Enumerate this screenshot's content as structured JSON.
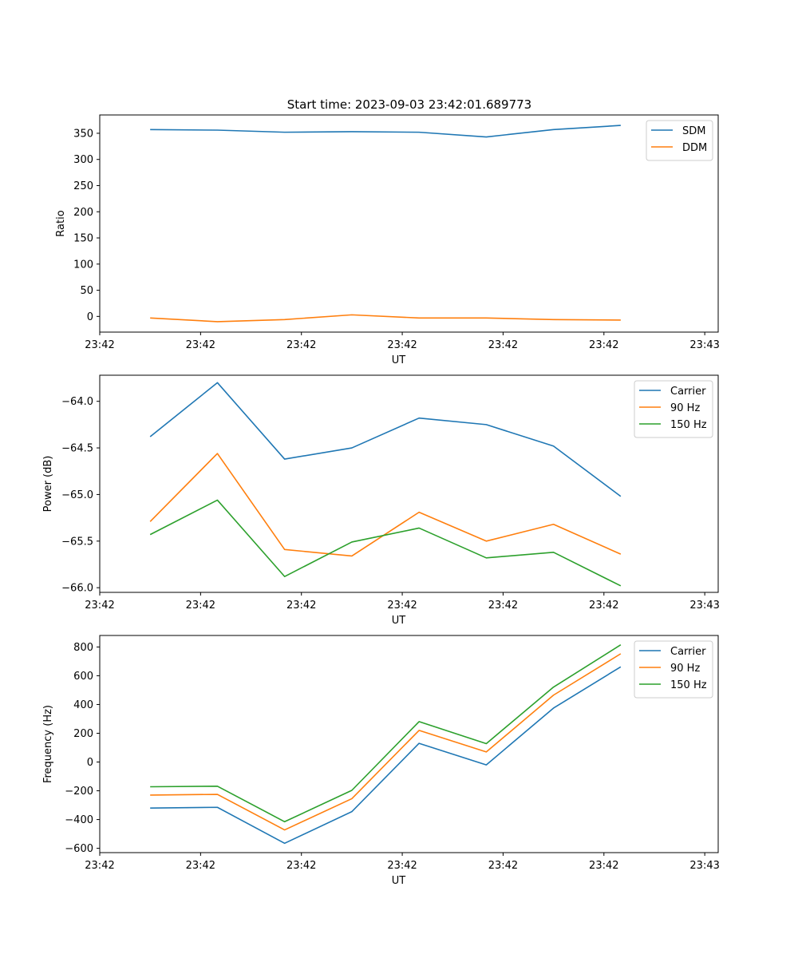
{
  "title": "Start time: 2023-09-03 23:42:01.689773",
  "colors": {
    "blue": "#1f77b4",
    "orange": "#ff7f0e",
    "green": "#2ca02c"
  },
  "chart_data": [
    {
      "type": "line",
      "xlabel": "UT",
      "ylabel": "Ratio",
      "x": [
        1,
        2,
        3,
        4,
        5,
        6,
        7,
        8
      ],
      "xlim": [
        0.25,
        9.45
      ],
      "xticks": [
        0.25,
        1.75,
        3.25,
        4.75,
        6.25,
        7.75,
        9.25
      ],
      "xtick_labels": [
        "23:42",
        "23:42",
        "23:42",
        "23:42",
        "23:42",
        "23:42",
        "23:43"
      ],
      "ylim": [
        -30,
        385
      ],
      "yticks": [
        0,
        50,
        100,
        150,
        200,
        250,
        300,
        350
      ],
      "ytick_labels": [
        "0",
        "50",
        "100",
        "150",
        "200",
        "250",
        "300",
        "350"
      ],
      "legend": "top-right",
      "series": [
        {
          "name": "SDM",
          "color": "blue",
          "values": [
            357,
            356,
            352,
            353,
            352,
            343,
            357,
            365
          ]
        },
        {
          "name": "DDM",
          "color": "orange",
          "values": [
            -3,
            -10,
            -6,
            3,
            -3,
            -3,
            -6,
            -7
          ]
        }
      ]
    },
    {
      "type": "line",
      "xlabel": "UT",
      "ylabel": "Power (dB)",
      "x": [
        1,
        2,
        3,
        4,
        5,
        6,
        7,
        8
      ],
      "xlim": [
        0.25,
        9.45
      ],
      "xticks": [
        0.25,
        1.75,
        3.25,
        4.75,
        6.25,
        7.75,
        9.25
      ],
      "xtick_labels": [
        "23:42",
        "23:42",
        "23:42",
        "23:42",
        "23:42",
        "23:42",
        "23:43"
      ],
      "ylim": [
        -66.05,
        -63.72
      ],
      "yticks": [
        -66.0,
        -65.5,
        -65.0,
        -64.5,
        -64.0
      ],
      "ytick_labels": [
        "−66.0",
        "−65.5",
        "−65.0",
        "−64.5",
        "−64.0"
      ],
      "legend": "top-right",
      "series": [
        {
          "name": "Carrier",
          "color": "blue",
          "values": [
            -64.38,
            -63.8,
            -64.62,
            -64.5,
            -64.18,
            -64.25,
            -64.48,
            -65.02
          ]
        },
        {
          "name": "90 Hz",
          "color": "orange",
          "values": [
            -65.29,
            -64.56,
            -65.59,
            -65.66,
            -65.19,
            -65.5,
            -65.32,
            -65.64
          ]
        },
        {
          "name": "150 Hz",
          "color": "green",
          "values": [
            -65.43,
            -65.06,
            -65.88,
            -65.51,
            -65.36,
            -65.68,
            -65.62,
            -65.98
          ]
        }
      ]
    },
    {
      "type": "line",
      "xlabel": "UT",
      "ylabel": "Frequency (Hz)",
      "x": [
        1,
        2,
        3,
        4,
        5,
        6,
        7,
        8
      ],
      "xlim": [
        0.25,
        9.45
      ],
      "xticks": [
        0.25,
        1.75,
        3.25,
        4.75,
        6.25,
        7.75,
        9.25
      ],
      "xtick_labels": [
        "23:42",
        "23:42",
        "23:42",
        "23:42",
        "23:42",
        "23:42",
        "23:43"
      ],
      "ylim": [
        -630,
        880
      ],
      "yticks": [
        -600,
        -400,
        -200,
        0,
        200,
        400,
        600,
        800
      ],
      "ytick_labels": [
        "−600",
        "−400",
        "−200",
        "0",
        "200",
        "400",
        "600",
        "800"
      ],
      "legend": "top-right",
      "series": [
        {
          "name": "Carrier",
          "color": "blue",
          "values": [
            -320,
            -315,
            -565,
            -345,
            130,
            -20,
            375,
            662
          ]
        },
        {
          "name": "90 Hz",
          "color": "orange",
          "values": [
            -230,
            -225,
            -472,
            -255,
            220,
            70,
            465,
            753
          ]
        },
        {
          "name": "150 Hz",
          "color": "green",
          "values": [
            -172,
            -168,
            -415,
            -197,
            281,
            128,
            521,
            815
          ]
        }
      ]
    }
  ]
}
